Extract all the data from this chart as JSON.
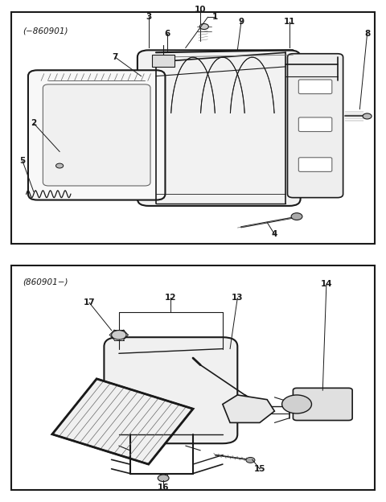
{
  "bg_color": "#ffffff",
  "lc": "#1a1a1a",
  "gray": "#666666",
  "lgray": "#999999",
  "title1": "(−860901)",
  "title2": "(860901−)",
  "fig_width": 4.8,
  "fig_height": 6.24,
  "dpi": 100
}
